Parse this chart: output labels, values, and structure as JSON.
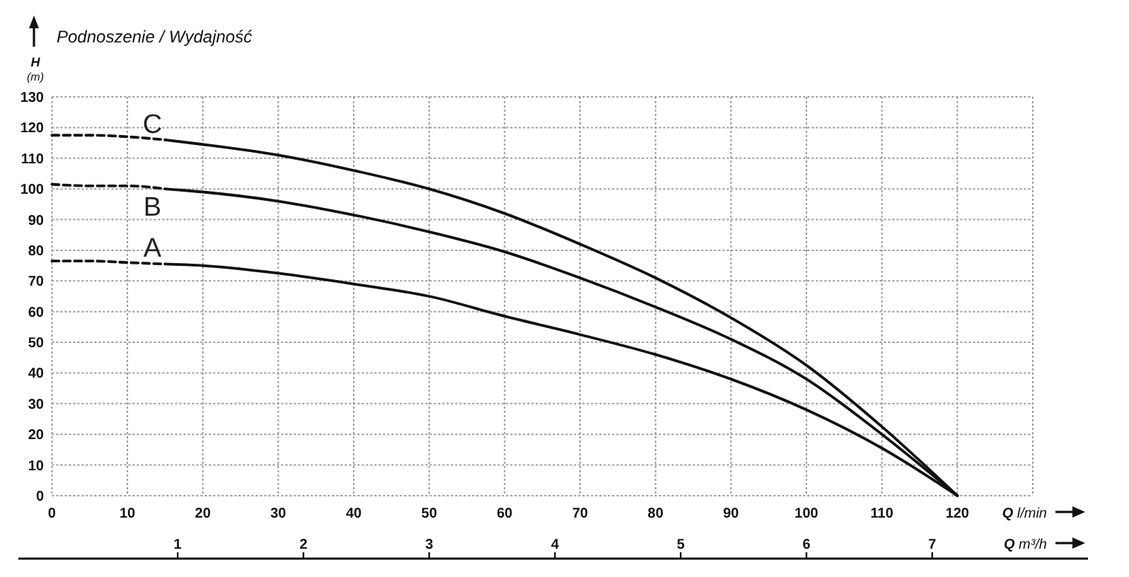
{
  "chart_data": {
    "type": "line",
    "title": "Podnoszenie / Wydajność",
    "xlabel": "Q l/min",
    "x2label": "Q m³/h",
    "ylabel": "H (m)",
    "xlim": [
      0,
      130
    ],
    "xticks": [
      0,
      10,
      20,
      30,
      40,
      50,
      60,
      70,
      80,
      90,
      100,
      110,
      120,
      {
        "value": 130,
        "label": null
      }
    ],
    "x2lim": [
      0,
      7.8
    ],
    "x2ticks": [
      1,
      2,
      3,
      4,
      5,
      6,
      7
    ],
    "ylim": [
      0,
      130
    ],
    "yticks": [
      0,
      10,
      20,
      30,
      40,
      50,
      60,
      70,
      80,
      90,
      100,
      110,
      120,
      130
    ],
    "grid": true,
    "series": [
      {
        "color": "#111111",
        "line_style": "dashed",
        "x": [
          0,
          5,
          10,
          15
        ],
        "values": [
          117.5,
          117.5,
          117,
          116
        ]
      },
      {
        "name": "C",
        "color": "#111111",
        "line_style": "solid",
        "x": [
          15,
          20,
          30,
          40,
          50,
          60,
          70,
          80,
          90,
          100,
          110,
          120
        ],
        "values": [
          116,
          114.5,
          111,
          106,
          100,
          92,
          82,
          71,
          58,
          42.5,
          22.5,
          0
        ]
      },
      {
        "color": "#111111",
        "line_style": "dashed",
        "x": [
          0,
          5,
          10,
          15
        ],
        "values": [
          101.5,
          101,
          101,
          100
        ]
      },
      {
        "name": "B",
        "color": "#111111",
        "line_style": "solid",
        "x": [
          15,
          20,
          30,
          40,
          50,
          60,
          70,
          80,
          90,
          100,
          110,
          120
        ],
        "values": [
          100,
          99,
          96,
          91.5,
          86,
          79.5,
          71,
          61.5,
          51,
          38,
          20,
          0
        ]
      },
      {
        "color": "#111111",
        "line_style": "dashed",
        "x": [
          0,
          5,
          10,
          15
        ],
        "values": [
          76.5,
          76.5,
          76,
          75.5
        ]
      },
      {
        "name": "A",
        "color": "#111111",
        "line_style": "solid",
        "x": [
          15,
          20,
          30,
          40,
          50,
          60,
          70,
          80,
          90,
          100,
          110,
          120
        ],
        "values": [
          75.5,
          75,
          72.5,
          69,
          65,
          58.5,
          52.5,
          46,
          38,
          28,
          15.5,
          0
        ]
      }
    ]
  }
}
